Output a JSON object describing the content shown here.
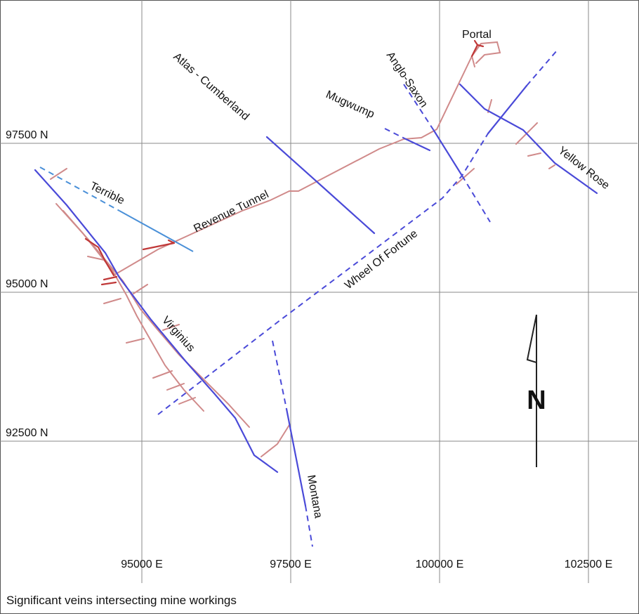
{
  "caption": "Significant veins intersecting mine workings",
  "axes": {
    "northings": [
      "97500 N",
      "95000 N",
      "92500 N"
    ],
    "eastings": [
      "95000 E",
      "97500 E",
      "100000 E",
      "102500 E"
    ]
  },
  "features": {
    "portal": "Portal",
    "revenue_tunnel": "Revenue Tunnel"
  },
  "veins": {
    "atlas": "Atlas - Cumberland",
    "anglo_saxon": "Anglo-Saxon",
    "mugwump": "Mugwump",
    "yellow_rose": "Yellow Rose",
    "terrible": "Terrible",
    "wheel_of_fortune": "Wheel Of Fortune",
    "virginius": "Virginius",
    "montana": "Montana"
  },
  "north_arrow": "N",
  "colors": {
    "vein": "#4a4ad8",
    "vein_terrible": "#4a90d8",
    "workings": "#d08a8a",
    "workings_dark": "#c03838",
    "grid": "#8a8a8a"
  }
}
